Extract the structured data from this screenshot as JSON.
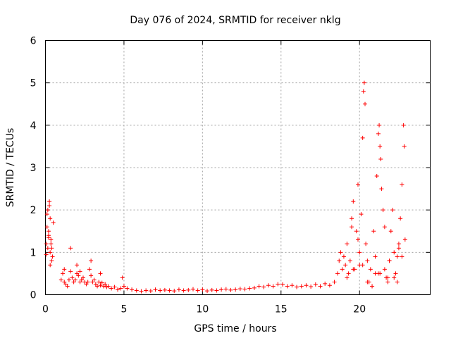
{
  "chart_data": {
    "type": "scatter",
    "title": "Day 076 of 2024, SRMTID for receiver nklg",
    "xlabel": "GPS time / hours",
    "ylabel": "SRMTID / TECUs",
    "xlim": [
      0,
      24.5
    ],
    "ylim": [
      0,
      6
    ],
    "xticks": [
      0,
      5,
      10,
      15,
      20
    ],
    "yticks": [
      0,
      1,
      2,
      3,
      4,
      5,
      6
    ],
    "grid": true,
    "marker": "+",
    "color": "#ff0000",
    "series": [
      {
        "name": "SRMTID",
        "x": [
          0.05,
          0.1,
          0.15,
          0.2,
          0.25,
          0.3,
          0.35,
          0.4,
          0.45,
          0.5,
          0.1,
          0.2,
          0.3,
          0.4,
          0.15,
          0.25,
          0.35,
          0.05,
          0.2,
          0.3,
          1.0,
          1.1,
          1.2,
          1.3,
          1.4,
          1.5,
          1.6,
          1.7,
          1.8,
          1.9,
          2.0,
          2.1,
          2.2,
          2.3,
          2.4,
          2.5,
          2.6,
          2.7,
          2.8,
          2.9,
          3.0,
          3.1,
          3.2,
          3.3,
          3.4,
          3.5,
          3.6,
          3.7,
          3.8,
          3.9,
          4.0,
          4.2,
          4.4,
          4.6,
          4.8,
          5.0,
          1.6,
          2.2,
          2.9,
          3.5,
          4.9,
          1.2,
          2.0,
          5.2,
          5.5,
          5.8,
          6.1,
          6.4,
          6.7,
          7.0,
          7.3,
          7.6,
          7.9,
          8.2,
          8.5,
          8.8,
          9.1,
          9.4,
          9.7,
          10.0,
          10.3,
          10.6,
          10.9,
          11.2,
          11.5,
          11.8,
          12.1,
          12.4,
          12.7,
          13.0,
          13.3,
          13.6,
          13.9,
          14.2,
          14.5,
          14.8,
          15.1,
          15.4,
          15.7,
          16.0,
          16.3,
          16.6,
          16.9,
          17.2,
          17.5,
          17.8,
          18.1,
          18.4,
          18.6,
          18.7,
          18.8,
          18.9,
          19.0,
          19.1,
          19.2,
          19.3,
          19.4,
          19.5,
          19.6,
          19.7,
          19.8,
          19.9,
          20.0,
          20.1,
          20.2,
          20.25,
          20.3,
          20.35,
          20.4,
          20.5,
          20.6,
          20.7,
          20.8,
          20.9,
          21.0,
          21.1,
          21.2,
          21.25,
          21.3,
          21.35,
          21.4,
          21.5,
          21.6,
          21.7,
          21.8,
          21.9,
          22.0,
          22.1,
          22.2,
          22.3,
          22.4,
          22.5,
          22.6,
          22.7,
          22.8,
          22.85,
          22.9,
          19.2,
          19.6,
          19.9,
          20.2,
          20.5,
          20.8,
          21.0,
          21.3,
          21.6,
          21.9,
          22.2,
          22.5,
          22.7,
          19.5,
          20.0,
          20.6,
          21.2,
          21.8,
          22.4
        ],
        "y": [
          1.2,
          1.6,
          2.0,
          1.4,
          2.2,
          1.0,
          1.3,
          1.1,
          0.9,
          1.7,
          1.9,
          1.5,
          1.8,
          0.8,
          1.1,
          2.1,
          1.2,
          0.95,
          1.35,
          0.7,
          0.35,
          0.5,
          0.3,
          0.25,
          0.2,
          0.35,
          0.55,
          0.4,
          0.3,
          0.35,
          0.5,
          0.45,
          0.3,
          0.35,
          0.4,
          0.3,
          0.25,
          0.3,
          0.6,
          0.45,
          0.3,
          0.35,
          0.25,
          0.2,
          0.3,
          0.22,
          0.28,
          0.2,
          0.25,
          0.18,
          0.2,
          0.15,
          0.18,
          0.12,
          0.15,
          0.2,
          1.1,
          0.55,
          0.8,
          0.5,
          0.4,
          0.6,
          0.7,
          0.15,
          0.12,
          0.1,
          0.08,
          0.1,
          0.09,
          0.12,
          0.1,
          0.11,
          0.1,
          0.09,
          0.12,
          0.1,
          0.11,
          0.13,
          0.1,
          0.12,
          0.09,
          0.11,
          0.1,
          0.12,
          0.13,
          0.11,
          0.12,
          0.14,
          0.13,
          0.15,
          0.16,
          0.2,
          0.18,
          0.22,
          0.2,
          0.25,
          0.24,
          0.2,
          0.22,
          0.18,
          0.2,
          0.22,
          0.19,
          0.24,
          0.2,
          0.26,
          0.22,
          0.3,
          0.5,
          0.8,
          1.0,
          0.6,
          0.9,
          0.7,
          1.2,
          0.5,
          0.8,
          1.8,
          2.2,
          0.6,
          1.5,
          2.6,
          1.0,
          1.9,
          3.7,
          4.8,
          5.0,
          4.5,
          1.2,
          0.8,
          0.3,
          0.6,
          0.2,
          1.5,
          0.5,
          2.8,
          3.8,
          4.0,
          3.5,
          3.2,
          2.5,
          2.0,
          1.6,
          0.4,
          0.3,
          0.8,
          1.5,
          2.0,
          1.0,
          0.5,
          0.3,
          1.2,
          1.8,
          2.6,
          4.0,
          3.5,
          1.3,
          0.4,
          0.6,
          1.3,
          0.7,
          0.3,
          0.2,
          0.9,
          0.5,
          0.6,
          0.8,
          0.4,
          1.1,
          0.9,
          1.6,
          0.7,
          0.3,
          0.5,
          0.4,
          0.9
        ]
      }
    ]
  }
}
